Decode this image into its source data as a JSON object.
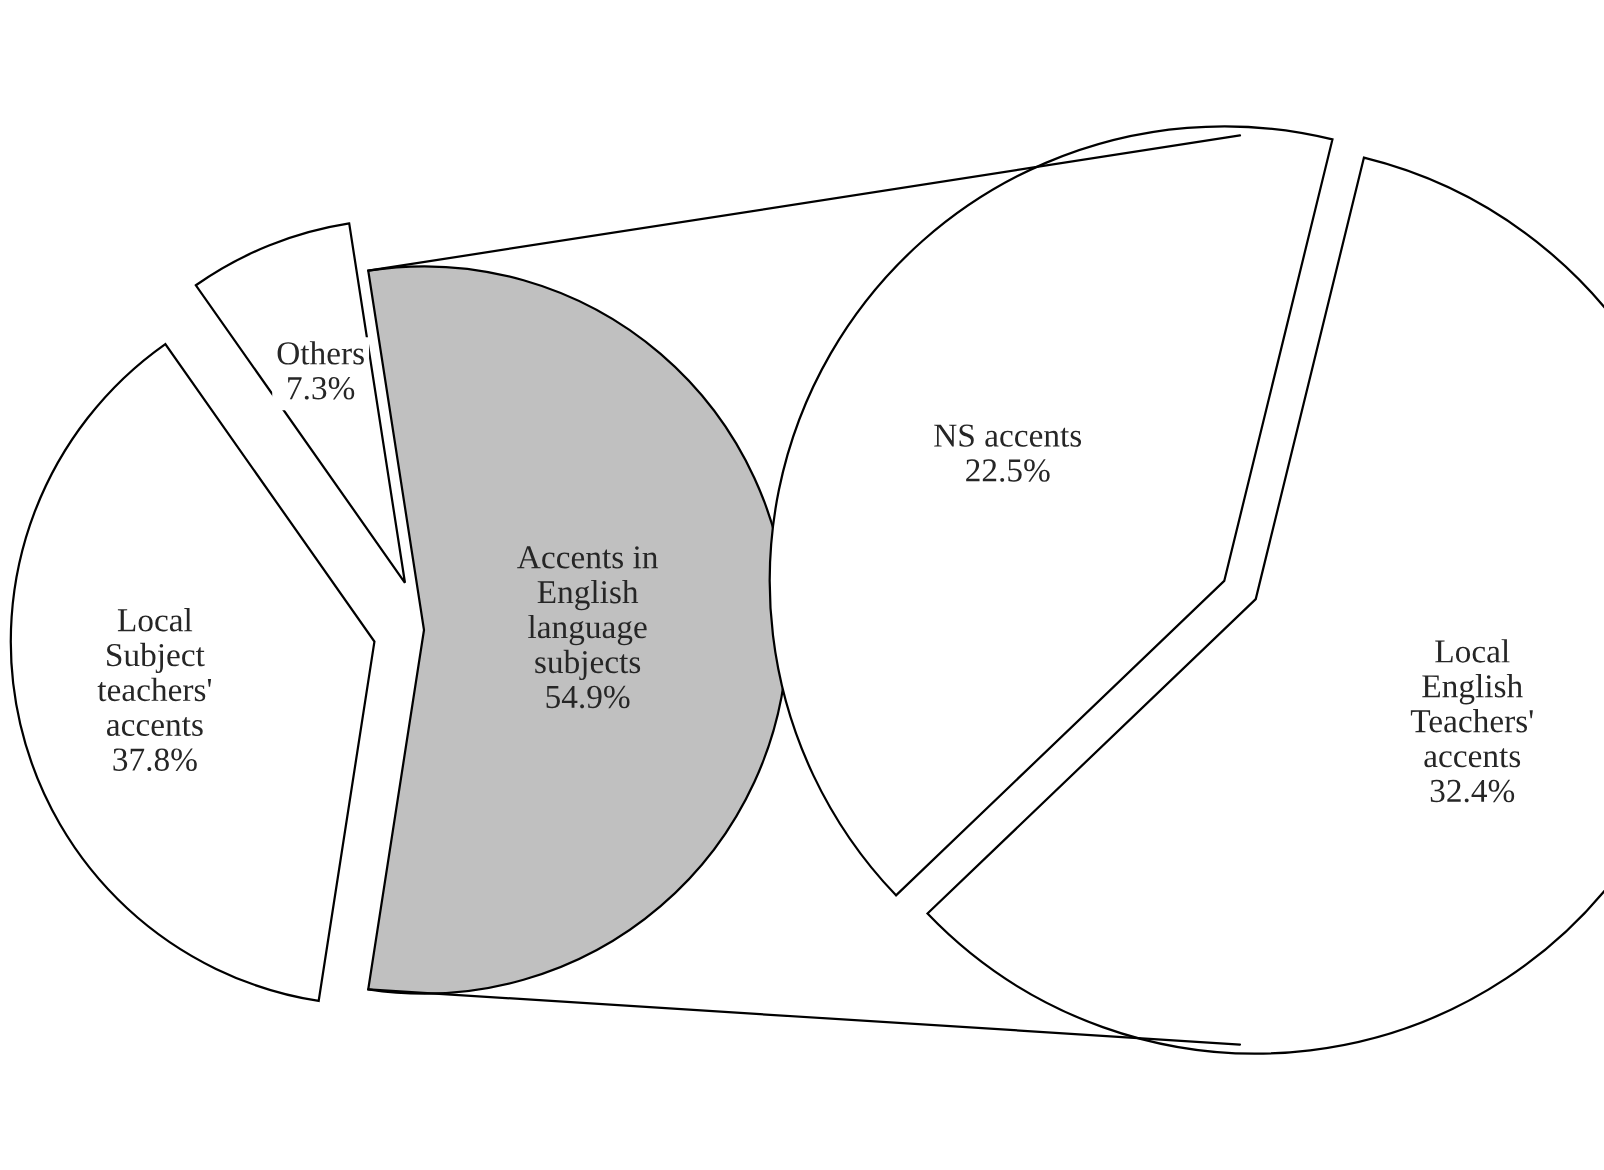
{
  "chart_data": [
    {
      "type": "pie",
      "categories": [
        "Accents in\nEnglish\nlanguage\nsubjects",
        "Others",
        "Local\nSubject\nteachers'\naccents"
      ],
      "values": [
        54.9,
        7.3,
        37.8
      ],
      "value_labels": [
        "54.9%",
        "7.3%",
        "37.8%"
      ],
      "colors": [
        "#c0c0c0",
        "#ffffff",
        "#ffffff"
      ]
    },
    {
      "type": "pie",
      "categories": [
        "NS accents",
        "Local\nEnglish\nTeachers'\naccents"
      ],
      "values": [
        22.5,
        32.4
      ],
      "value_labels": [
        "22.5%",
        "32.4%"
      ],
      "colors": [
        "#ffffff",
        "#ffffff"
      ]
    }
  ]
}
